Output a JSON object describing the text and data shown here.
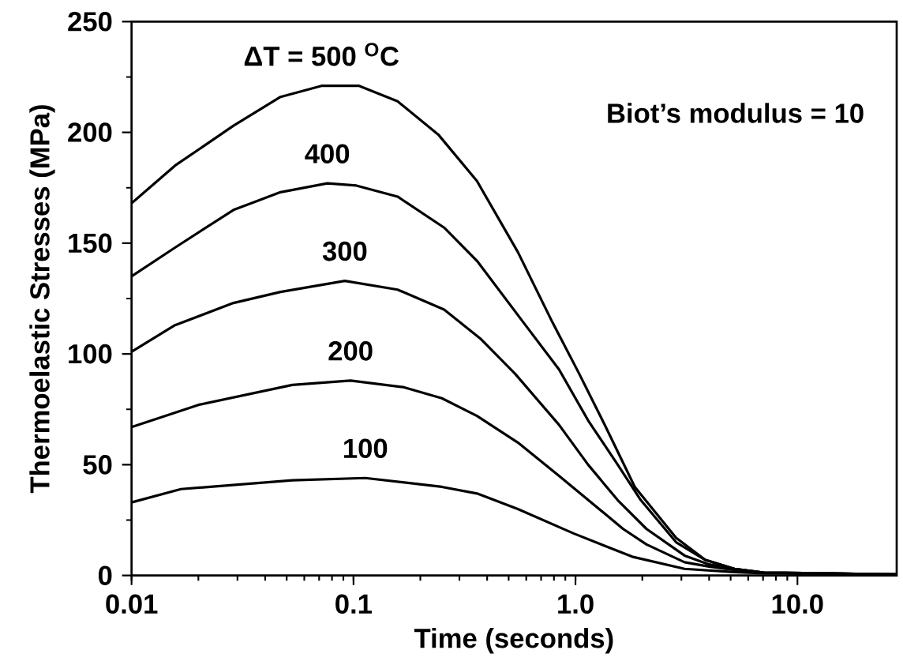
{
  "chart_data": {
    "type": "line",
    "xlabel": "Time  (seconds)",
    "ylabel": "Thermoelastic Stresses (MPa)",
    "log": "x",
    "xlim": [
      0.01,
      28
    ],
    "ylim": [
      0,
      250
    ],
    "xticks": [
      0.01,
      0.1,
      {
        "value": 1,
        "label": "1.0"
      },
      {
        "value": 10,
        "label": "10.0"
      }
    ],
    "yticks": [
      0,
      50,
      100,
      150,
      200,
      250
    ],
    "marker": "none",
    "line_style": "solid",
    "series": [
      {
        "name": "ΔT = 500 $^{O}$C",
        "color": "#000000",
        "x": [
          0.01,
          0.0157,
          0.0288,
          0.0469,
          0.0717,
          0.089,
          0.106,
          0.158,
          0.241,
          0.36,
          0.55,
          0.79,
          1.04,
          1.37,
          1.85,
          2.84,
          3.85,
          5.2,
          7.05,
          28
        ],
        "values": [
          168,
          185,
          203,
          216,
          221,
          221,
          221,
          214,
          199,
          178,
          146,
          114,
          91,
          67,
          40,
          17,
          7,
          3,
          1.3,
          0.5
        ]
      },
      {
        "name": "400",
        "color": "#000000",
        "x": [
          0.01,
          0.0157,
          0.0288,
          0.0469,
          0.0762,
          0.103,
          0.158,
          0.256,
          0.36,
          0.585,
          0.843,
          1.14,
          1.55,
          1.97,
          2.84,
          3.85,
          5.2,
          7.05,
          28
        ],
        "values": [
          135,
          148,
          165,
          173,
          177,
          176,
          171,
          157,
          142,
          114,
          93,
          70,
          50,
          34,
          15,
          7,
          3,
          1.3,
          0.5
        ]
      },
      {
        "name": "300",
        "color": "#000000",
        "x": [
          0.01,
          0.0157,
          0.0288,
          0.0469,
          0.0914,
          0.158,
          0.256,
          0.372,
          0.535,
          0.843,
          1.14,
          1.55,
          2.09,
          3.1,
          4,
          5.2,
          7.05,
          28
        ],
        "values": [
          101,
          113,
          123,
          128,
          133,
          129,
          120,
          107,
          91,
          68,
          50,
          34,
          21,
          9,
          5,
          3,
          1.3,
          0.5
        ]
      },
      {
        "name": "200",
        "color": "#000000",
        "x": [
          0.01,
          0.02,
          0.053,
          0.097,
          0.168,
          0.25,
          0.36,
          0.55,
          0.843,
          1.21,
          1.64,
          2.09,
          3.1,
          4,
          5.2,
          7.05,
          28
        ],
        "values": [
          67,
          77,
          86,
          88,
          85,
          80,
          72,
          60,
          45,
          32,
          21,
          14,
          6,
          4,
          2.5,
          1.3,
          0.5
        ]
      },
      {
        "name": "100",
        "color": "#000000",
        "x": [
          0.01,
          0.0167,
          0.053,
          0.113,
          0.25,
          0.36,
          0.55,
          0.98,
          1.8,
          3.1,
          5.2,
          7.05,
          28
        ],
        "values": [
          33,
          39,
          43,
          44,
          40,
          37,
          30,
          19,
          8.5,
          3,
          1.5,
          1,
          0.5
        ]
      }
    ],
    "annotations": [
      "Biot’s modulus = 10"
    ]
  }
}
